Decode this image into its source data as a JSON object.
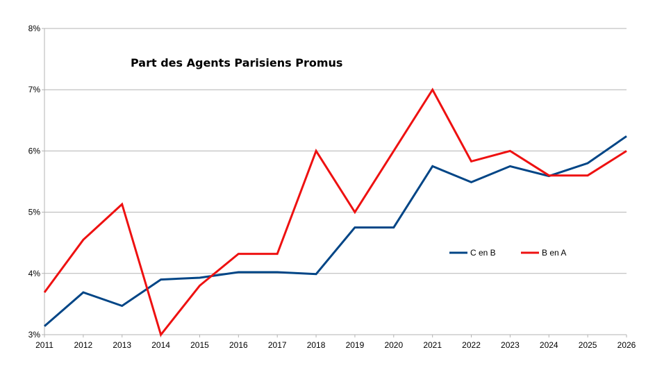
{
  "chart_data": {
    "type": "line",
    "title": "Part des Agents Parisiens Promus",
    "xlabel": "",
    "ylabel": "",
    "x": [
      2011,
      2012,
      2013,
      2014,
      2015,
      2016,
      2017,
      2018,
      2019,
      2020,
      2021,
      2022,
      2023,
      2024,
      2025,
      2026
    ],
    "x_labels": [
      "2011",
      "2012",
      "2013",
      "2014",
      "2015",
      "2016",
      "2017",
      "2018",
      "2019",
      "2020",
      "2021",
      "2022",
      "2023",
      "2024",
      "2025",
      "2026"
    ],
    "ylim": [
      3,
      8
    ],
    "yticks": [
      3,
      4,
      5,
      6,
      7,
      8
    ],
    "ytick_labels": [
      "3%",
      "4%",
      "5%",
      "6%",
      "7%",
      "8%"
    ],
    "grid": true,
    "legend_position": "right",
    "series": [
      {
        "name": "C en B",
        "color": "#004586",
        "values": [
          3.14,
          3.69,
          3.47,
          3.9,
          3.93,
          4.02,
          4.02,
          3.99,
          4.75,
          4.75,
          5.75,
          5.49,
          5.75,
          5.59,
          5.8,
          6.24
        ]
      },
      {
        "name": "B en A",
        "color": "#ee1111",
        "values": [
          3.69,
          4.55,
          5.13,
          3.0,
          3.8,
          4.32,
          4.32,
          6.0,
          5.0,
          6.0,
          7.0,
          5.83,
          6.0,
          5.6,
          5.6,
          6.0
        ]
      }
    ]
  }
}
